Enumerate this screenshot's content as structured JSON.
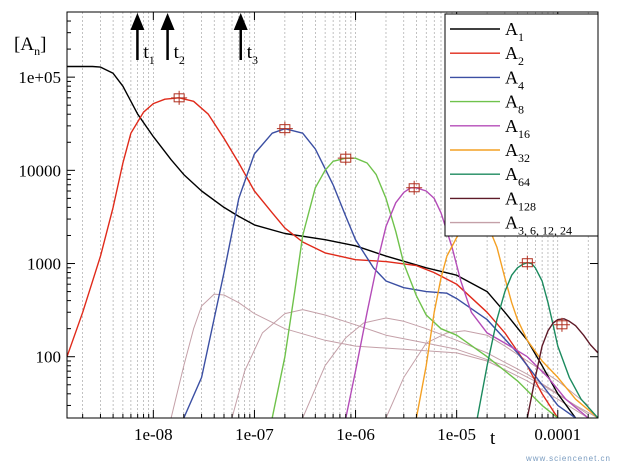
{
  "chart_data": {
    "type": "line",
    "x_scale": "log",
    "y_scale": "log",
    "xlim": [
      1.4e-09,
      0.00025
    ],
    "ylim": [
      22,
      500000
    ],
    "x_ticks": [
      {
        "v": 1e-08,
        "label": "1e-08"
      },
      {
        "v": 1e-07,
        "label": "1e-07"
      },
      {
        "v": 1e-06,
        "label": "1e-06"
      },
      {
        "v": 1e-05,
        "label": "1e-05"
      },
      {
        "v": 0.0001,
        "label": "0.0001"
      }
    ],
    "y_ticks": [
      {
        "v": 100,
        "label": "100"
      },
      {
        "v": 1000,
        "label": "1000"
      },
      {
        "v": 10000,
        "label": "10000"
      },
      {
        "v": 100000,
        "label": "1e+05"
      }
    ],
    "xlabel": "t",
    "ylabel_main": "[A",
    "ylabel_sub": "n",
    "ylabel_end": "]",
    "grid": "minor dashed x only",
    "legend_position": "top-right",
    "arrows": [
      {
        "label": "t",
        "sub": "1",
        "x": 7.8e-09
      },
      {
        "label": "t",
        "sub": "2",
        "x": 1.55e-08
      },
      {
        "label": "t",
        "sub": "3",
        "x": 8.2e-08
      }
    ],
    "series": [
      {
        "name": "A",
        "sub": "1",
        "color": "#000000",
        "points": [
          [
            1.4e-09,
            130000
          ],
          [
            2.5e-09,
            130000
          ],
          [
            3e-09,
            128000
          ],
          [
            4e-09,
            110000
          ],
          [
            5e-09,
            80000
          ],
          [
            6e-09,
            55000
          ],
          [
            7e-09,
            40000
          ],
          [
            1e-08,
            23000
          ],
          [
            1.5e-08,
            13000
          ],
          [
            2e-08,
            9000
          ],
          [
            3e-08,
            6000
          ],
          [
            5e-08,
            4000
          ],
          [
            7e-08,
            3200
          ],
          [
            1e-07,
            2600
          ],
          [
            2e-07,
            2100
          ],
          [
            5e-07,
            1800
          ],
          [
            1e-06,
            1550
          ],
          [
            2e-06,
            1200
          ],
          [
            5e-06,
            900
          ],
          [
            1e-05,
            750
          ],
          [
            2e-05,
            500
          ],
          [
            3e-05,
            300
          ],
          [
            5e-05,
            150
          ],
          [
            7e-05,
            80
          ],
          [
            0.0001,
            40
          ],
          [
            0.00015,
            22
          ]
        ]
      },
      {
        "name": "A",
        "sub": "2",
        "color": "#e02a1a",
        "points": [
          [
            1.4e-09,
            100
          ],
          [
            2e-09,
            300
          ],
          [
            3e-09,
            1200
          ],
          [
            4e-09,
            4000
          ],
          [
            5e-09,
            12000
          ],
          [
            6e-09,
            25000
          ],
          [
            8e-09,
            42000
          ],
          [
            1e-08,
            52000
          ],
          [
            1.3e-08,
            58000
          ],
          [
            1.8e-08,
            60000
          ],
          [
            2.5e-08,
            55000
          ],
          [
            3.5e-08,
            40000
          ],
          [
            5e-08,
            22000
          ],
          [
            7e-08,
            12000
          ],
          [
            1e-07,
            6000
          ],
          [
            1.5e-07,
            3500
          ],
          [
            2e-07,
            2400
          ],
          [
            3e-07,
            1700
          ],
          [
            5e-07,
            1300
          ],
          [
            1e-06,
            1100
          ],
          [
            2e-06,
            1050
          ],
          [
            4e-06,
            950
          ],
          [
            6e-06,
            800
          ],
          [
            1e-05,
            600
          ],
          [
            2e-05,
            300
          ],
          [
            3e-05,
            180
          ],
          [
            5e-05,
            80
          ],
          [
            7e-05,
            40
          ],
          [
            0.0001,
            22
          ]
        ],
        "marker": {
          "x": 1.8e-08,
          "y": 60000
        }
      },
      {
        "name": "A",
        "sub": "4",
        "color": "#3b4fa3",
        "points": [
          [
            2e-08,
            22
          ],
          [
            3e-08,
            60
          ],
          [
            5e-08,
            800
          ],
          [
            7e-08,
            5000
          ],
          [
            1e-07,
            15000
          ],
          [
            1.5e-07,
            25000
          ],
          [
            2e-07,
            28000
          ],
          [
            3e-07,
            25000
          ],
          [
            4e-07,
            17000
          ],
          [
            6e-07,
            7000
          ],
          [
            8e-07,
            3200
          ],
          [
            1e-06,
            1800
          ],
          [
            1.5e-06,
            900
          ],
          [
            2e-06,
            650
          ],
          [
            3e-06,
            550
          ],
          [
            5e-06,
            500
          ],
          [
            8e-06,
            480
          ],
          [
            1e-05,
            420
          ],
          [
            2e-05,
            250
          ],
          [
            4e-05,
            110
          ],
          [
            7e-05,
            50
          ],
          [
            0.0001,
            30
          ],
          [
            0.00015,
            22
          ]
        ],
        "marker": {
          "x": 2e-07,
          "y": 28000
        }
      },
      {
        "name": "A",
        "sub": "8",
        "color": "#6fc24b",
        "points": [
          [
            1.5e-07,
            22
          ],
          [
            2e-07,
            100
          ],
          [
            2.5e-07,
            500
          ],
          [
            3e-07,
            2000
          ],
          [
            4e-07,
            6500
          ],
          [
            5e-07,
            10000
          ],
          [
            6e-07,
            12500
          ],
          [
            8e-07,
            13500
          ],
          [
            1e-06,
            13500
          ],
          [
            1.3e-06,
            12000
          ],
          [
            1.6e-06,
            9000
          ],
          [
            2e-06,
            5000
          ],
          [
            2.5e-06,
            2200
          ],
          [
            3e-06,
            1000
          ],
          [
            4e-06,
            450
          ],
          [
            5e-06,
            280
          ],
          [
            7e-06,
            200
          ],
          [
            1e-05,
            170
          ],
          [
            2e-05,
            100
          ],
          [
            4e-05,
            55
          ],
          [
            7e-05,
            30
          ],
          [
            0.0001,
            22
          ]
        ],
        "marker": {
          "x": 8e-07,
          "y": 13500
        }
      },
      {
        "name": "A",
        "sub": "16",
        "color": "#b44cb8",
        "points": [
          [
            8e-07,
            22
          ],
          [
            1e-06,
            70
          ],
          [
            1.3e-06,
            300
          ],
          [
            1.7e-06,
            1200
          ],
          [
            2e-06,
            2500
          ],
          [
            2.5e-06,
            4500
          ],
          [
            3e-06,
            5800
          ],
          [
            3.5e-06,
            6500
          ],
          [
            4e-06,
            6500
          ],
          [
            5e-06,
            6000
          ],
          [
            6e-06,
            5000
          ],
          [
            7e-06,
            3500
          ],
          [
            9e-06,
            1500
          ],
          [
            1.1e-05,
            650
          ],
          [
            1.4e-05,
            300
          ],
          [
            2e-05,
            180
          ],
          [
            3e-05,
            140
          ],
          [
            5e-05,
            100
          ],
          [
            8e-05,
            60
          ],
          [
            0.00012,
            35
          ],
          [
            0.0002,
            22
          ]
        ],
        "marker": {
          "x": 3.8e-06,
          "y": 6500
        }
      },
      {
        "name": "A",
        "sub": "32",
        "color": "#f4a023",
        "points": [
          [
            4e-06,
            22
          ],
          [
            5e-06,
            80
          ],
          [
            6e-06,
            300
          ],
          [
            7e-06,
            700
          ],
          [
            8e-06,
            1200
          ],
          [
            1e-05,
            1900
          ],
          [
            1.2e-05,
            2500
          ],
          [
            1.4e-05,
            2750
          ],
          [
            1.6e-05,
            2800
          ],
          [
            1.9e-05,
            2600
          ],
          [
            2.2e-05,
            2100
          ],
          [
            2.5e-05,
            1500
          ],
          [
            3e-05,
            700
          ],
          [
            3.5e-05,
            380
          ],
          [
            4e-05,
            250
          ],
          [
            5e-05,
            150
          ],
          [
            7e-05,
            90
          ],
          [
            0.0001,
            60
          ],
          [
            0.00015,
            35
          ],
          [
            0.00025,
            22
          ]
        ],
        "marker": {
          "x": 1.6e-05,
          "y": 2800
        }
      },
      {
        "name": "A",
        "sub": "64",
        "color": "#1b8a5e",
        "points": [
          [
            1.6e-05,
            22
          ],
          [
            2e-05,
            80
          ],
          [
            2.5e-05,
            250
          ],
          [
            3e-05,
            500
          ],
          [
            3.5e-05,
            750
          ],
          [
            4e-05,
            900
          ],
          [
            4.5e-05,
            980
          ],
          [
            5e-05,
            1020
          ],
          [
            5.5e-05,
            1000
          ],
          [
            6e-05,
            900
          ],
          [
            7e-05,
            650
          ],
          [
            8e-05,
            380
          ],
          [
            9e-05,
            220
          ],
          [
            0.0001,
            130
          ],
          [
            0.00013,
            60
          ],
          [
            0.00017,
            35
          ],
          [
            0.00025,
            22
          ]
        ],
        "marker": {
          "x": 5e-05,
          "y": 1020
        }
      },
      {
        "name": "A",
        "sub": "128",
        "color": "#5e1a28",
        "points": [
          [
            5e-05,
            22
          ],
          [
            6e-05,
            60
          ],
          [
            7e-05,
            130
          ],
          [
            8e-05,
            190
          ],
          [
            9e-05,
            230
          ],
          [
            0.0001,
            250
          ],
          [
            0.000115,
            255
          ],
          [
            0.00013,
            240
          ],
          [
            0.00015,
            215
          ],
          [
            0.00018,
            170
          ],
          [
            0.00021,
            135
          ],
          [
            0.00025,
            110
          ]
        ],
        "marker": {
          "x": 0.00011,
          "y": 220
        }
      },
      {
        "name": "A",
        "sub": "3, 6, 12, 24",
        "color": "#c4a0a8",
        "points": [
          [
            1.5e-08,
            22
          ],
          [
            2e-08,
            80
          ],
          [
            2.5e-08,
            200
          ],
          [
            3e-08,
            350
          ],
          [
            4e-08,
            470
          ],
          [
            5e-08,
            460
          ],
          [
            7e-08,
            380
          ],
          [
            1e-07,
            290
          ],
          [
            2e-07,
            200
          ],
          [
            5e-07,
            150
          ],
          [
            1e-06,
            130
          ],
          [
            3e-06,
            120
          ],
          [
            1e-05,
            110
          ],
          [
            2e-05,
            90
          ],
          [
            5e-05,
            55
          ],
          [
            0.0001,
            35
          ],
          [
            0.0002,
            22
          ]
        ]
      },
      {
        "name": "",
        "color": "#c4a0a8",
        "points": [
          [
            6e-08,
            22
          ],
          [
            8e-08,
            70
          ],
          [
            1.2e-07,
            180
          ],
          [
            2e-07,
            290
          ],
          [
            3e-07,
            320
          ],
          [
            5e-07,
            280
          ],
          [
            1e-06,
            220
          ],
          [
            2e-06,
            170
          ],
          [
            5e-06,
            140
          ],
          [
            1e-05,
            120
          ],
          [
            3e-05,
            80
          ],
          [
            7e-05,
            50
          ],
          [
            0.00015,
            30
          ],
          [
            0.00025,
            22
          ]
        ]
      },
      {
        "name": "",
        "color": "#c4a0a8",
        "points": [
          [
            3e-07,
            22
          ],
          [
            5e-07,
            80
          ],
          [
            8e-07,
            160
          ],
          [
            1.2e-06,
            230
          ],
          [
            2e-06,
            260
          ],
          [
            3e-06,
            240
          ],
          [
            5e-06,
            200
          ],
          [
            1e-05,
            150
          ],
          [
            2e-05,
            110
          ],
          [
            5e-05,
            65
          ],
          [
            0.0001,
            40
          ],
          [
            0.0002,
            24
          ]
        ]
      },
      {
        "name": "",
        "color": "#c4a0a8",
        "points": [
          [
            2e-06,
            22
          ],
          [
            3e-06,
            60
          ],
          [
            5e-06,
            140
          ],
          [
            8e-06,
            180
          ],
          [
            1.2e-05,
            190
          ],
          [
            2e-05,
            170
          ],
          [
            3e-05,
            130
          ],
          [
            5e-05,
            90
          ],
          [
            0.0001,
            55
          ],
          [
            0.0002,
            30
          ]
        ]
      }
    ],
    "legend": [
      {
        "text": "A",
        "sub": "1",
        "color": "#000000"
      },
      {
        "text": "A",
        "sub": "2",
        "color": "#e02a1a"
      },
      {
        "text": "A",
        "sub": "4",
        "color": "#3b4fa3"
      },
      {
        "text": "A",
        "sub": "8",
        "color": "#6fc24b"
      },
      {
        "text": "A",
        "sub": "16",
        "color": "#b44cb8"
      },
      {
        "text": "A",
        "sub": "32",
        "color": "#f4a023"
      },
      {
        "text": "A",
        "sub": "64",
        "color": "#1b8a5e"
      },
      {
        "text": "A",
        "sub": "128",
        "color": "#5e1a28"
      },
      {
        "text": "A",
        "sub": "3, 6, 12, 24",
        "color": "#c4a0a8"
      }
    ]
  },
  "watermark": "www.sciencenet.cn"
}
